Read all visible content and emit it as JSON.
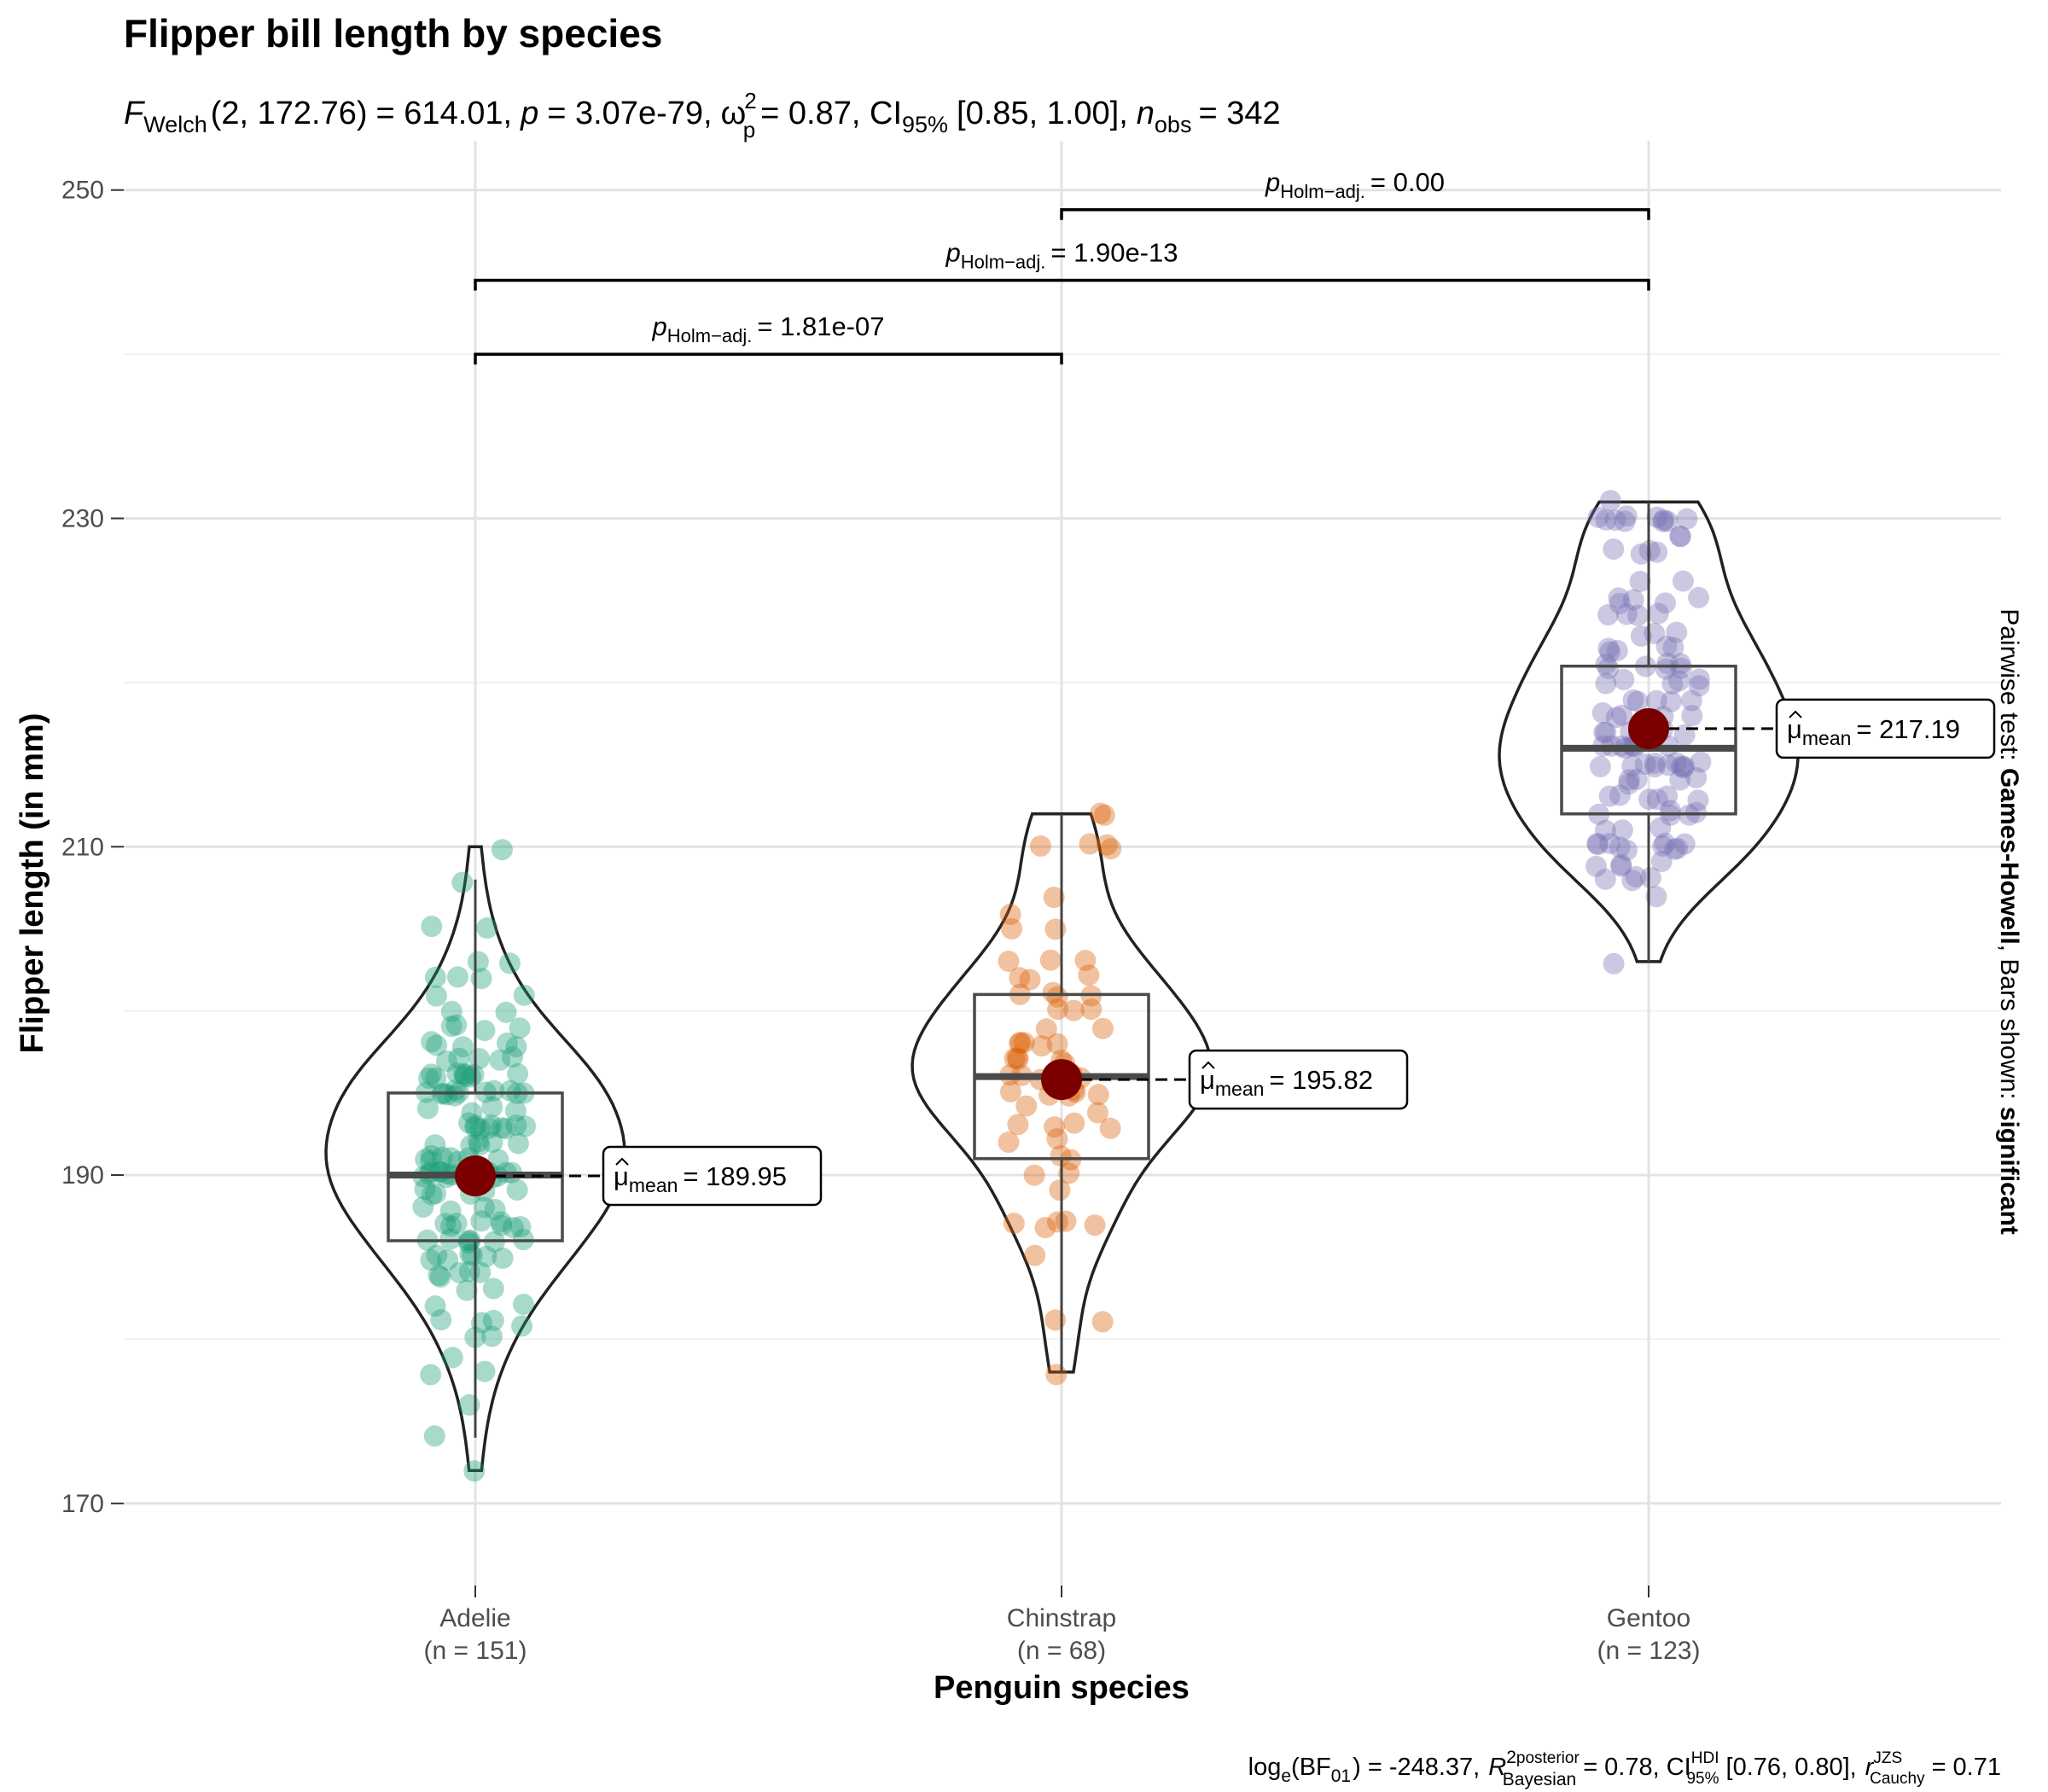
{
  "chart_data": {
    "type": "violin",
    "title": "Flipper bill length by species",
    "subtitle": {
      "F": "F",
      "F_sub": "Welch",
      "df": "(2, 172.76)",
      "F_value": "= 614.01,",
      "p_label": "p",
      "p_value": "= 3.07e-79,",
      "omega": "ω",
      "omega_sup": "2",
      "omega_sub": "p",
      "omega_value": "= 0.87, CI",
      "ci_sub": "95%",
      "ci_value": "[0.85, 1.00],",
      "n_label": "n",
      "n_sub": "obs",
      "n_value": "= 342"
    },
    "xlabel": "Penguin species",
    "ylabel": "Flipper length (in mm)",
    "ylim": [
      165,
      253
    ],
    "yticks": [
      170,
      190,
      210,
      230,
      250
    ],
    "ytick_labels": [
      "170",
      "190",
      "210",
      "230",
      "250"
    ],
    "grid": true,
    "categories": [
      "Adelie",
      "Chinstrap",
      "Gentoo"
    ],
    "category_n": [
      "(n = 151)",
      "(n = 68)",
      "(n = 123)"
    ],
    "colors": {
      "Adelie": "#1b9e77",
      "Chinstrap": "#d95f02",
      "Gentoo": "#7570b3",
      "mean_point": "#7a0000"
    },
    "boxes": [
      {
        "q1": 186,
        "median": 190,
        "q3": 195,
        "whisker_low": 174,
        "whisker_high": 208
      },
      {
        "q1": 191,
        "median": 196,
        "q3": 201,
        "whisker_low": 178,
        "whisker_high": 212
      },
      {
        "q1": 212,
        "median": 216,
        "q3": 221,
        "whisker_low": 203,
        "whisker_high": 231
      }
    ],
    "violin_range": [
      [
        172,
        210
      ],
      [
        178,
        212
      ],
      [
        203,
        231
      ]
    ],
    "means": [
      189.95,
      195.82,
      217.19
    ],
    "mean_label_prefix": "μ",
    "mean_label_sub": "mean",
    "mean_labels": [
      "= 189.95",
      "= 195.82",
      "= 217.19"
    ],
    "points": [
      [
        172,
        174,
        176,
        178,
        178,
        179,
        180,
        180,
        181,
        181,
        181,
        181,
        182,
        182,
        183,
        183,
        184,
        184,
        184,
        184,
        184,
        185,
        185,
        185,
        185,
        185,
        185,
        185,
        186,
        186,
        186,
        186,
        186,
        186,
        186,
        187,
        187,
        187,
        187,
        187,
        187,
        187,
        187,
        188,
        188,
        188,
        188,
        189,
        189,
        189,
        189,
        189,
        189,
        190,
        190,
        190,
        190,
        190,
        190,
        190,
        190,
        190,
        190,
        190,
        190,
        190,
        190,
        190,
        190,
        190,
        190,
        191,
        191,
        191,
        191,
        191,
        191,
        191,
        191,
        192,
        192,
        192,
        192,
        192,
        192,
        193,
        193,
        193,
        193,
        193,
        193,
        193,
        193,
        193,
        193,
        194,
        194,
        194,
        194,
        195,
        195,
        195,
        195,
        195,
        195,
        195,
        195,
        195,
        195,
        195,
        195,
        196,
        196,
        196,
        196,
        196,
        196,
        196,
        196,
        196,
        196,
        197,
        197,
        197,
        197,
        197,
        198,
        198,
        198,
        198,
        198,
        199,
        199,
        199,
        199,
        200,
        200,
        201,
        201,
        202,
        202,
        202,
        203,
        203,
        205,
        205,
        208,
        210
      ],
      [
        178,
        181,
        181,
        185,
        187,
        187,
        187,
        187,
        187,
        189,
        190,
        190,
        191,
        191,
        192,
        192,
        193,
        193,
        193,
        193,
        194,
        194,
        195,
        195,
        195,
        195,
        195,
        196,
        196,
        196,
        196,
        196,
        197,
        197,
        197,
        197,
        197,
        198,
        198,
        198,
        198,
        198,
        199,
        199,
        200,
        200,
        200,
        201,
        201,
        201,
        201,
        202,
        202,
        202,
        203,
        203,
        203,
        205,
        205,
        206,
        207,
        210,
        210,
        210,
        210,
        212,
        212,
        195
      ],
      [
        203,
        207,
        208,
        208,
        208,
        208,
        209,
        209,
        209,
        209,
        210,
        210,
        210,
        210,
        210,
        210,
        210,
        210,
        210,
        211,
        211,
        211,
        212,
        212,
        212,
        212,
        212,
        213,
        213,
        213,
        213,
        213,
        213,
        214,
        214,
        214,
        214,
        214,
        215,
        215,
        215,
        215,
        215,
        215,
        215,
        215,
        215,
        215,
        215,
        216,
        216,
        216,
        216,
        216,
        216,
        216,
        216,
        217,
        217,
        217,
        217,
        217,
        217,
        218,
        218,
        218,
        218,
        218,
        219,
        219,
        219,
        219,
        219,
        220,
        220,
        220,
        220,
        220,
        220,
        221,
        221,
        221,
        221,
        221,
        221,
        221,
        222,
        222,
        222,
        222,
        222,
        223,
        223,
        223,
        224,
        224,
        224,
        224,
        225,
        225,
        225,
        225,
        225,
        226,
        226,
        228,
        228,
        228,
        228,
        229,
        229,
        230,
        230,
        230,
        230,
        230,
        230,
        230,
        230,
        230,
        231,
        230,
        210
      ]
    ],
    "pairwise": [
      {
        "from": 0,
        "to": 1,
        "p_label": "p",
        "p_sub": "Holm−adj.",
        "value": "= 1.81e-07",
        "y": 240
      },
      {
        "from": 0,
        "to": 2,
        "p_label": "p",
        "p_sub": "Holm−adj.",
        "value": "= 1.90e-13",
        "y": 244.5
      },
      {
        "from": 1,
        "to": 2,
        "p_label": "p",
        "p_sub": "Holm−adj.",
        "value": "= 0.00",
        "y": 248.8
      }
    ],
    "side_label": {
      "prefix": "Pairwise test: ",
      "test": "Games-Howell",
      "middle": ", Bars shown: ",
      "shown": "significant"
    },
    "caption": {
      "log": "log",
      "log_sub": "e",
      "bf": "(BF",
      "bf_sub": "01",
      "bf_value": ") = -248.37,",
      "r": "R",
      "r_sup": "2",
      "r_sup_label": "posterior",
      "r_sub": "Bayesian",
      "r_value": "= 0.78, CI",
      "ci_sup": "HDI",
      "ci_sub": "95%",
      "ci_value": "[0.76, 0.80],",
      "rc": "r",
      "rc_sup": "JZS",
      "rc_sub": "Cauchy",
      "rc_value": "= 0.71"
    }
  }
}
